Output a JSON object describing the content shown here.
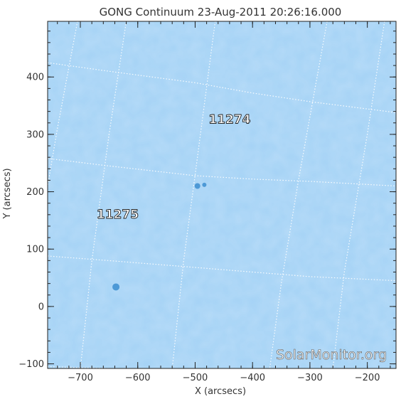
{
  "chart_data": {
    "type": "heatmap",
    "title": "GONG Continuum 23-Aug-2011 20:26:16.000",
    "xlabel": "X (arcsecs)",
    "ylabel": "Y (arcsecs)",
    "xlim": [
      -757,
      -150
    ],
    "ylim": [
      -108,
      497
    ],
    "xticks": [
      -700,
      -600,
      -500,
      -400,
      -300,
      -200
    ],
    "yticks": [
      -100,
      0,
      100,
      200,
      300,
      400
    ],
    "grid": true,
    "regions": [
      {
        "label": "11274",
        "x": -440,
        "y": 325
      },
      {
        "label": "11275",
        "x": -635,
        "y": 160
      }
    ],
    "sunspots": [
      {
        "x": -638,
        "y": 34,
        "r": 5
      },
      {
        "x": -496,
        "y": 210,
        "r": 4
      },
      {
        "x": -484,
        "y": 212,
        "r": 3
      }
    ],
    "grid_lines": {
      "latitude": [
        [
          [
            -757,
            425
          ],
          [
            -650,
            410
          ],
          [
            -500,
            390
          ],
          [
            -400,
            372
          ],
          [
            -300,
            357
          ],
          [
            -150,
            338
          ]
        ],
        [
          [
            -757,
            258
          ],
          [
            -650,
            245
          ],
          [
            -500,
            228
          ],
          [
            -400,
            222
          ],
          [
            -300,
            218
          ],
          [
            -150,
            210
          ]
        ],
        [
          [
            -757,
            88
          ],
          [
            -650,
            80
          ],
          [
            -500,
            68
          ],
          [
            -400,
            60
          ],
          [
            -300,
            52
          ],
          [
            -150,
            45
          ]
        ],
        [
          [
            -757,
            -105
          ],
          [
            -650,
            -108
          ]
        ]
      ],
      "longitude": [
        [
          [
            -705,
            497
          ],
          [
            -740,
            310
          ],
          [
            -757,
            210
          ]
        ],
        [
          [
            -620,
            497
          ],
          [
            -650,
            300
          ],
          [
            -680,
            80
          ],
          [
            -690,
            -15
          ],
          [
            -700,
            -108
          ]
        ],
        [
          [
            -465,
            497
          ],
          [
            -500,
            230
          ],
          [
            -520,
            80
          ],
          [
            -540,
            -108
          ]
        ],
        [
          [
            -270,
            497
          ],
          [
            -320,
            220
          ],
          [
            -350,
            40
          ],
          [
            -370,
            -108
          ]
        ],
        [
          [
            -170,
            497
          ],
          [
            -200,
            300
          ],
          [
            -240,
            60
          ],
          [
            -260,
            -108
          ]
        ]
      ]
    }
  },
  "watermark": "SolarMonitor.org",
  "colors": {
    "disk": "#a4d2f5",
    "disk_dark": "#9acbf0",
    "disk_light": "#b6dcf8",
    "sunspot": "#3c8ed0",
    "grid": "#ffffff",
    "axis": "#222222"
  }
}
